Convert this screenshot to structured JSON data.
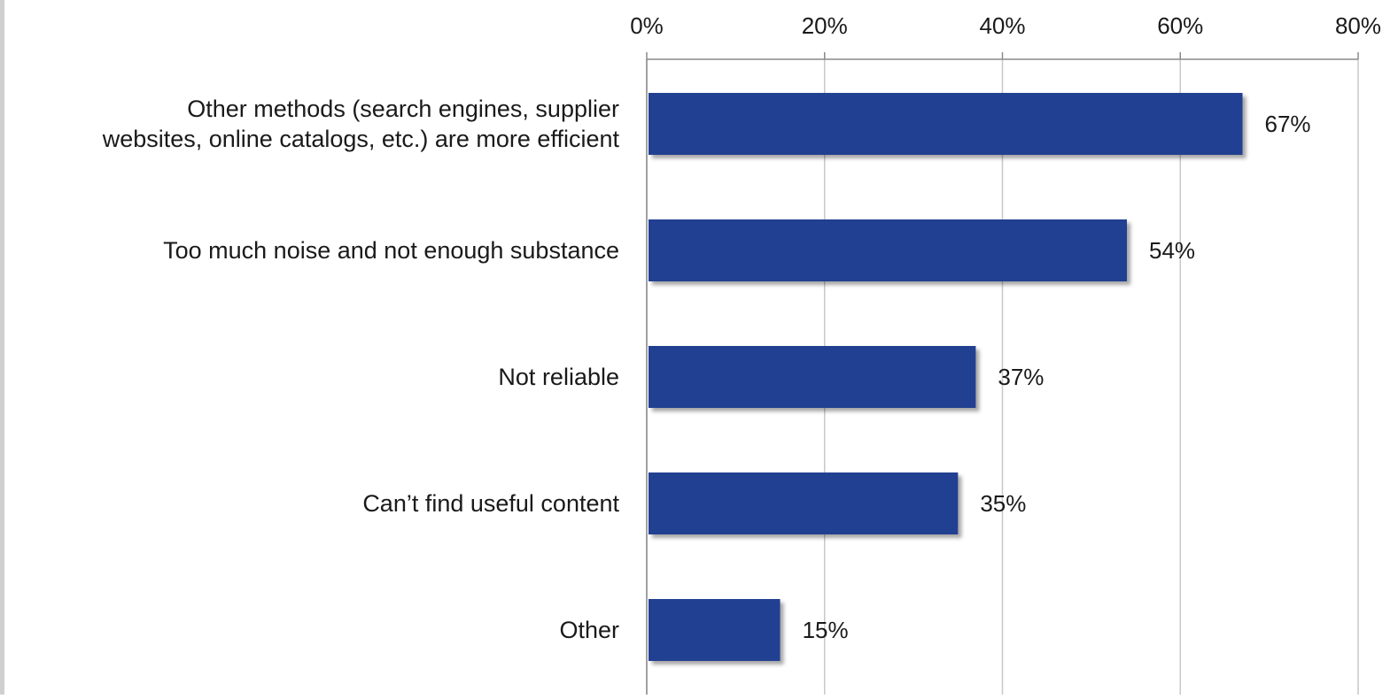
{
  "chart_data": {
    "type": "bar",
    "orientation": "horizontal",
    "categories": [
      [
        "Other methods (search engines, supplier",
        "websites, online catalogs, etc.) are more efficient"
      ],
      [
        "Too much noise and not enough substance"
      ],
      [
        "Not reliable"
      ],
      [
        "Can’t find useful content"
      ],
      [
        "Other"
      ]
    ],
    "values": [
      67,
      54,
      37,
      35,
      15
    ],
    "value_labels": [
      "67%",
      "54%",
      "37%",
      "35%",
      "15%"
    ],
    "xlim": [
      0,
      80
    ],
    "xticks": [
      0,
      20,
      40,
      60,
      80
    ],
    "xtick_labels": [
      "0%",
      "20%",
      "40%",
      "60%",
      "80%"
    ],
    "axis_position": "top",
    "grid": true,
    "legend": "none",
    "title": "",
    "xlabel": "",
    "ylabel": "",
    "colors": {
      "bar": "#233f91",
      "grid": "#c8c8c8",
      "axis": "#8a8a8a"
    }
  }
}
